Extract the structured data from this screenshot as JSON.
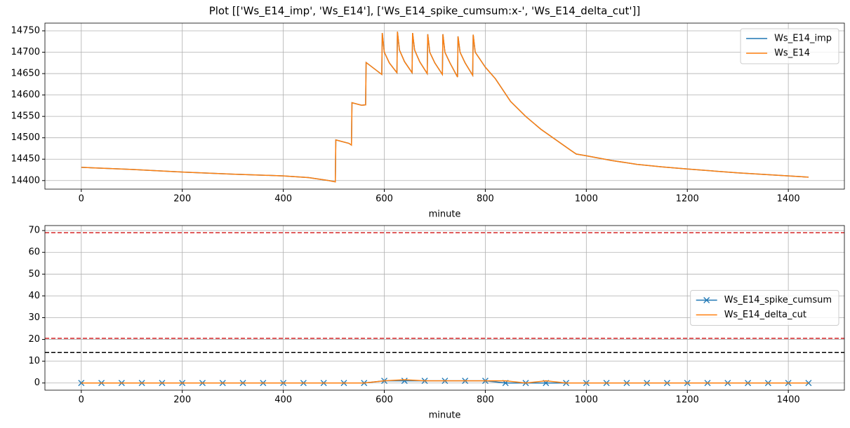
{
  "chart_data": [
    {
      "type": "line",
      "title": "Plot [['Ws_E14_imp', 'Ws_E14'], ['Ws_E14_spike_cumsum:x-', 'Ws_E14_delta_cut']]",
      "xlabel": "minute",
      "grid": true,
      "legend": "upper right",
      "xlim": [
        -72,
        1511
      ],
      "ylim": [
        14380,
        14768
      ],
      "xticks": [
        0,
        200,
        400,
        600,
        800,
        1000,
        1200,
        1400
      ],
      "yticks": [
        14400,
        14450,
        14500,
        14550,
        14600,
        14650,
        14700,
        14750
      ],
      "x": [
        0,
        100,
        200,
        300,
        400,
        450,
        490,
        503,
        504,
        530,
        535,
        536,
        555,
        563,
        564,
        595,
        596,
        600,
        610,
        625,
        626,
        630,
        640,
        655,
        656,
        660,
        670,
        685,
        686,
        690,
        700,
        715,
        716,
        720,
        730,
        745,
        746,
        750,
        760,
        775,
        776,
        780,
        800,
        820,
        850,
        880,
        910,
        940,
        970,
        980,
        1000,
        1050,
        1100,
        1150,
        1200,
        1300,
        1440
      ],
      "series": [
        {
          "name": "Ws_E14_imp",
          "color": "#1f77b4",
          "values": [
            14431,
            14426,
            14420,
            14415,
            14411,
            14407,
            14400,
            14397,
            14495,
            14487,
            14483,
            14582,
            14576,
            14577,
            14676,
            14648,
            14745,
            14700,
            14675,
            14652,
            14748,
            14705,
            14678,
            14652,
            14745,
            14705,
            14678,
            14650,
            14742,
            14700,
            14675,
            14648,
            14742,
            14700,
            14675,
            14642,
            14737,
            14700,
            14675,
            14646,
            14741,
            14700,
            14665,
            14638,
            14585,
            14550,
            14520,
            14495,
            14470,
            14462,
            14458,
            14447,
            14438,
            14432,
            14427,
            14418,
            14408
          ]
        },
        {
          "name": "Ws_E14",
          "color": "#ff7f0e",
          "values": [
            14431,
            14426,
            14420,
            14415,
            14411,
            14407,
            14400,
            14397,
            14495,
            14487,
            14483,
            14582,
            14576,
            14577,
            14676,
            14648,
            14745,
            14700,
            14675,
            14652,
            14748,
            14705,
            14678,
            14652,
            14745,
            14705,
            14678,
            14650,
            14742,
            14700,
            14675,
            14648,
            14742,
            14700,
            14675,
            14642,
            14737,
            14700,
            14675,
            14646,
            14741,
            14700,
            14665,
            14638,
            14585,
            14550,
            14520,
            14495,
            14470,
            14462,
            14458,
            14447,
            14438,
            14432,
            14427,
            14418,
            14408
          ]
        }
      ]
    },
    {
      "type": "line",
      "xlabel": "minute",
      "grid": true,
      "legend": "center right",
      "xlim": [
        -72,
        1511
      ],
      "ylim": [
        -3.3,
        72.3
      ],
      "xticks": [
        0,
        200,
        400,
        600,
        800,
        1000,
        1200,
        1400
      ],
      "yticks": [
        0,
        10,
        20,
        30,
        40,
        50,
        60,
        70
      ],
      "hlines": [
        {
          "value": 69,
          "color": "#d62728"
        },
        {
          "value": 20.5,
          "color": "#d62728"
        },
        {
          "value": 14,
          "color": "#000000"
        }
      ],
      "x": [
        0,
        40,
        80,
        120,
        160,
        200,
        240,
        280,
        320,
        360,
        400,
        440,
        480,
        520,
        560,
        600,
        640,
        680,
        720,
        760,
        800,
        840,
        880,
        920,
        960,
        1000,
        1040,
        1080,
        1120,
        1160,
        1200,
        1240,
        1280,
        1320,
        1360,
        1400,
        1440
      ],
      "series": [
        {
          "name": "Ws_E14_spike_cumsum",
          "color": "#1f77b4",
          "marker": "x",
          "values": [
            0,
            0,
            0,
            0,
            0,
            0,
            0,
            0,
            0,
            0,
            0,
            0,
            0,
            0,
            0,
            1,
            1,
            1,
            1,
            1,
            1,
            0,
            0,
            0,
            0,
            0,
            0,
            0,
            0,
            0,
            0,
            0,
            0,
            0,
            0,
            0,
            0
          ]
        },
        {
          "name": "Ws_E14_delta_cut",
          "color": "#ff7f0e",
          "values": [
            0,
            0,
            0,
            0,
            0,
            0,
            0,
            0,
            0,
            0,
            0,
            0,
            0,
            0,
            0,
            1,
            1.5,
            1,
            1,
            1,
            1,
            1,
            0,
            1,
            0,
            0,
            0,
            0,
            0,
            0,
            0,
            0,
            0,
            0,
            0,
            0,
            0
          ]
        }
      ]
    }
  ]
}
